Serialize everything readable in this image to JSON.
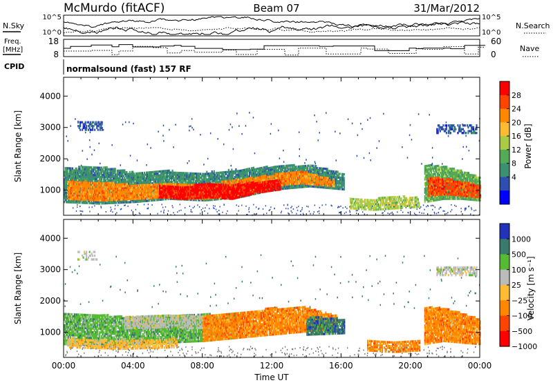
{
  "header": {
    "station": "McMurdo (fitACF)",
    "beam": "Beam 07",
    "date": "31/Mar/2012"
  },
  "top_panels": {
    "nsky_label": "N.Sky",
    "nsearch_label": "N.Search",
    "nsky_ticks": [
      "10^5",
      "10^0"
    ],
    "nsearch_ticks": [
      "10^5",
      "10^0"
    ],
    "freq_label": [
      "Freq.",
      "[MHz]"
    ],
    "freq_ticks": [
      "18",
      "8"
    ],
    "nave_label": "Nave",
    "nave_ticks": [
      "60",
      "0"
    ],
    "cpid_label": "CPID",
    "cpid_text": "normalsound (fast) 157 RF"
  },
  "chart_data": [
    {
      "type": "heatmap",
      "name": "power",
      "xlabel": "",
      "ylabel": "Slant Range [km]",
      "xlim": [
        0,
        24
      ],
      "ylim": [
        200,
        4600
      ],
      "yticks": [
        1000,
        2000,
        3000,
        4000
      ],
      "colorbar": {
        "label": "Power [dB]",
        "ticks": [
          "28",
          "24",
          "20",
          "16",
          "12",
          "8",
          "4"
        ],
        "colors": [
          "#ff0000",
          "#ff4400",
          "#ff8800",
          "#ffbb33",
          "#aacc44",
          "#55aa55",
          "#3a9070",
          "#2f4fb0",
          "#0000ff"
        ]
      },
      "regions": [
        {
          "t0": 0.0,
          "t1": 16.2,
          "r_lo": [
            600,
            550,
            600,
            700,
            650,
            750,
            1000,
            1100,
            1000
          ],
          "r_hi": [
            1700,
            1750,
            1550,
            1600,
            1550,
            1650,
            1750,
            1800,
            1500
          ],
          "level": 6,
          "density": 0.92
        },
        {
          "t0": 0.2,
          "t1": 15.6,
          "r_lo": [
            700,
            650,
            700,
            750,
            700,
            800,
            1100,
            1200,
            1100
          ],
          "r_hi": [
            1300,
            1250,
            1150,
            1200,
            1150,
            1300,
            1450,
            1600,
            1300
          ],
          "level": 2,
          "density": 0.9
        },
        {
          "t0": 5.5,
          "t1": 12.5,
          "r_lo": [
            750,
            700,
            750,
            700,
            900,
            1000
          ],
          "r_hi": [
            1150,
            1100,
            1200,
            1150,
            1250,
            1350
          ],
          "level": 0,
          "density": 0.85
        },
        {
          "t0": 16.5,
          "t1": 20.5,
          "r_lo": [
            400,
            350,
            400,
            450
          ],
          "r_hi": [
            750,
            700,
            800,
            750
          ],
          "level": 4,
          "density": 0.75
        },
        {
          "t0": 20.8,
          "t1": 24.0,
          "r_lo": [
            600,
            700,
            700,
            650
          ],
          "r_hi": [
            1800,
            1750,
            1600,
            1400
          ],
          "level": 5,
          "density": 0.9
        },
        {
          "t0": 21.0,
          "t1": 24.0,
          "r_lo": [
            800,
            850,
            800,
            750
          ],
          "r_hi": [
            1400,
            1350,
            1250,
            1150
          ],
          "level": 1,
          "density": 0.85
        },
        {
          "t0": 0.8,
          "t1": 2.2,
          "r_lo": [
            2900
          ],
          "r_hi": [
            3200
          ],
          "level": 7,
          "density": 0.5
        },
        {
          "t0": 21.5,
          "t1": 23.8,
          "r_lo": [
            2800
          ],
          "r_hi": [
            3100
          ],
          "level": 7,
          "density": 0.55
        }
      ]
    },
    {
      "type": "heatmap",
      "name": "velocity",
      "xlabel": "Time UT",
      "ylabel": "Slant Range [km]",
      "xlim": [
        0,
        24
      ],
      "ylim": [
        200,
        4600
      ],
      "yticks": [
        1000,
        2000,
        3000,
        4000
      ],
      "xticks": [
        "00:00",
        "04:00",
        "08:00",
        "12:00",
        "16:00",
        "20:00",
        "00:00"
      ],
      "colorbar": {
        "label": "Velocity [m s⁻¹]",
        "ticks": [
          "1000",
          "500",
          "100",
          "25",
          "−25",
          "−100",
          "−500",
          "−1000"
        ],
        "colors": [
          "#2233bb",
          "#3a7a6a",
          "#55bb33",
          "#bbbbbb",
          "#ffbb33",
          "#ff8800",
          "#ff4400",
          "#ff0000"
        ]
      },
      "regions": [
        {
          "t0": 0.0,
          "t1": 10.0,
          "r_lo": [
            600,
            550,
            600,
            650,
            700,
            800
          ],
          "r_hi": [
            1600,
            1550,
            1450,
            1500,
            1550,
            1600
          ],
          "level": 2,
          "density": 0.88
        },
        {
          "t0": 3.5,
          "t1": 8.5,
          "r_lo": [
            1100,
            1150,
            1100
          ],
          "r_hi": [
            1500,
            1550,
            1500
          ],
          "level": 3,
          "density": 0.8
        },
        {
          "t0": 8.0,
          "t1": 15.8,
          "r_lo": [
            700,
            800,
            900,
            1000,
            1100
          ],
          "r_hi": [
            1500,
            1600,
            1750,
            1800,
            1500
          ],
          "level": 5,
          "density": 0.9
        },
        {
          "t0": 0.2,
          "t1": 6.5,
          "r_lo": [
            500,
            450,
            500
          ],
          "r_hi": [
            800,
            750,
            800
          ],
          "level": 4,
          "density": 0.7
        },
        {
          "t0": 14.0,
          "t1": 16.2,
          "r_lo": [
            900,
            950
          ],
          "r_hi": [
            1500,
            1400
          ],
          "level": 1,
          "density": 0.85
        },
        {
          "t0": 17.5,
          "t1": 20.5,
          "r_lo": [
            400,
            350,
            400
          ],
          "r_hi": [
            750,
            700,
            750
          ],
          "level": 5,
          "density": 0.75
        },
        {
          "t0": 20.8,
          "t1": 24.0,
          "r_lo": [
            600,
            700,
            650,
            600
          ],
          "r_hi": [
            1800,
            1750,
            1600,
            1400
          ],
          "level": 5,
          "density": 0.9
        },
        {
          "t0": 21.5,
          "t1": 23.8,
          "r_lo": [
            2800
          ],
          "r_hi": [
            3100
          ],
          "level": 3,
          "density": 0.6
        },
        {
          "t0": 0.8,
          "t1": 2.0,
          "r_lo": [
            3300
          ],
          "r_hi": [
            3600
          ],
          "level": 3,
          "density": 0.35
        }
      ]
    }
  ]
}
